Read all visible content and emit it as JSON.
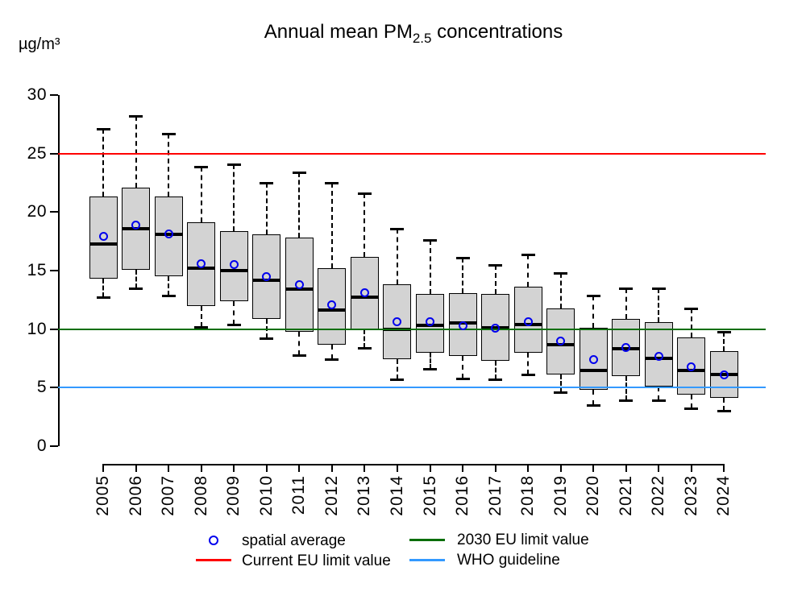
{
  "title_parts": {
    "prefix": "Annual mean PM",
    "subscript": "2.5",
    "suffix": " concentrations"
  },
  "chart_data": {
    "type": "boxplot",
    "title": "Annual mean PM2.5 concentrations",
    "ylabel": "µg/m³",
    "xlabel": "",
    "ylim": [
      0,
      30
    ],
    "yticks": [
      0,
      5,
      10,
      15,
      20,
      25,
      30
    ],
    "grid": false,
    "box_fill_color": "#D3D3D3",
    "box_border_color": "#000000",
    "median_color": "#000000",
    "mean_point_color": "#0000EE",
    "categories": [
      "2005",
      "2006",
      "2007",
      "2008",
      "2009",
      "2010",
      "2011",
      "2012",
      "2013",
      "2014",
      "2015",
      "2016",
      "2017",
      "2018",
      "2019",
      "2020",
      "2021",
      "2022",
      "2023",
      "2024"
    ],
    "boxes": [
      {
        "year": "2005",
        "whisker_low": 12.7,
        "q1": 14.3,
        "median": 17.3,
        "q3": 21.3,
        "whisker_high": 27.1,
        "mean": 17.9
      },
      {
        "year": "2006",
        "whisker_low": 13.5,
        "q1": 15.1,
        "median": 18.6,
        "q3": 22.1,
        "whisker_high": 28.2,
        "mean": 18.9
      },
      {
        "year": "2007",
        "whisker_low": 12.9,
        "q1": 14.5,
        "median": 18.1,
        "q3": 21.3,
        "whisker_high": 26.7,
        "mean": 18.1
      },
      {
        "year": "2008",
        "whisker_low": 10.2,
        "q1": 12.0,
        "median": 15.2,
        "q3": 19.1,
        "whisker_high": 23.9,
        "mean": 15.6
      },
      {
        "year": "2009",
        "whisker_low": 10.4,
        "q1": 12.4,
        "median": 15.0,
        "q3": 18.4,
        "whisker_high": 24.1,
        "mean": 15.5
      },
      {
        "year": "2010",
        "whisker_low": 9.2,
        "q1": 10.9,
        "median": 14.2,
        "q3": 18.1,
        "whisker_high": 22.5,
        "mean": 14.5
      },
      {
        "year": "2011",
        "whisker_low": 7.8,
        "q1": 9.8,
        "median": 13.4,
        "q3": 17.8,
        "whisker_high": 23.4,
        "mean": 13.8
      },
      {
        "year": "2012",
        "whisker_low": 7.4,
        "q1": 8.7,
        "median": 11.6,
        "q3": 15.2,
        "whisker_high": 22.5,
        "mean": 12.1
      },
      {
        "year": "2013",
        "whisker_low": 8.4,
        "q1": 10.0,
        "median": 12.7,
        "q3": 16.2,
        "whisker_high": 21.6,
        "mean": 13.1
      },
      {
        "year": "2014",
        "whisker_low": 5.7,
        "q1": 7.4,
        "median": 10.0,
        "q3": 13.8,
        "whisker_high": 18.6,
        "mean": 10.6
      },
      {
        "year": "2015",
        "whisker_low": 6.6,
        "q1": 8.0,
        "median": 10.3,
        "q3": 13.0,
        "whisker_high": 17.6,
        "mean": 10.6
      },
      {
        "year": "2016",
        "whisker_low": 5.8,
        "q1": 7.7,
        "median": 10.5,
        "q3": 13.1,
        "whisker_high": 16.1,
        "mean": 10.3
      },
      {
        "year": "2017",
        "whisker_low": 5.7,
        "q1": 7.3,
        "median": 10.1,
        "q3": 13.0,
        "whisker_high": 15.5,
        "mean": 10.1
      },
      {
        "year": "2018",
        "whisker_low": 6.1,
        "q1": 8.0,
        "median": 10.4,
        "q3": 13.6,
        "whisker_high": 16.4,
        "mean": 10.6
      },
      {
        "year": "2019",
        "whisker_low": 4.6,
        "q1": 6.1,
        "median": 8.7,
        "q3": 11.8,
        "whisker_high": 14.8,
        "mean": 9.0
      },
      {
        "year": "2020",
        "whisker_low": 3.5,
        "q1": 4.8,
        "median": 6.5,
        "q3": 10.1,
        "whisker_high": 12.9,
        "mean": 7.4
      },
      {
        "year": "2021",
        "whisker_low": 3.9,
        "q1": 6.0,
        "median": 8.3,
        "q3": 10.9,
        "whisker_high": 13.5,
        "mean": 8.4
      },
      {
        "year": "2022",
        "whisker_low": 3.9,
        "q1": 5.1,
        "median": 7.5,
        "q3": 10.6,
        "whisker_high": 13.5,
        "mean": 7.7
      },
      {
        "year": "2023",
        "whisker_low": 3.2,
        "q1": 4.4,
        "median": 6.5,
        "q3": 9.3,
        "whisker_high": 11.8,
        "mean": 6.8
      },
      {
        "year": "2024",
        "whisker_low": 3.0,
        "q1": 4.1,
        "median": 6.1,
        "q3": 8.1,
        "whisker_high": 9.8,
        "mean": 6.1
      }
    ],
    "reference_lines": [
      {
        "name": "current-eu-limit",
        "label": "Current EU limit value",
        "value": 25,
        "color": "#FF0000"
      },
      {
        "name": "2030-eu-limit",
        "label": "2030 EU limit value",
        "value": 10,
        "color": "#0A6E0A"
      },
      {
        "name": "who-guideline",
        "label": "WHO guideline",
        "value": 5,
        "color": "#3399FF"
      }
    ],
    "legend": {
      "position": "bottom-center",
      "entries": [
        {
          "symbol": "open-circle",
          "label": "spatial average",
          "color": "#0000EE"
        },
        {
          "symbol": "line",
          "label": "Current EU limit value",
          "color": "#FF0000"
        },
        {
          "symbol": "line",
          "label": "2030 EU limit value",
          "color": "#0A6E0A"
        },
        {
          "symbol": "line",
          "label": "WHO guideline",
          "color": "#3399FF"
        }
      ]
    }
  }
}
